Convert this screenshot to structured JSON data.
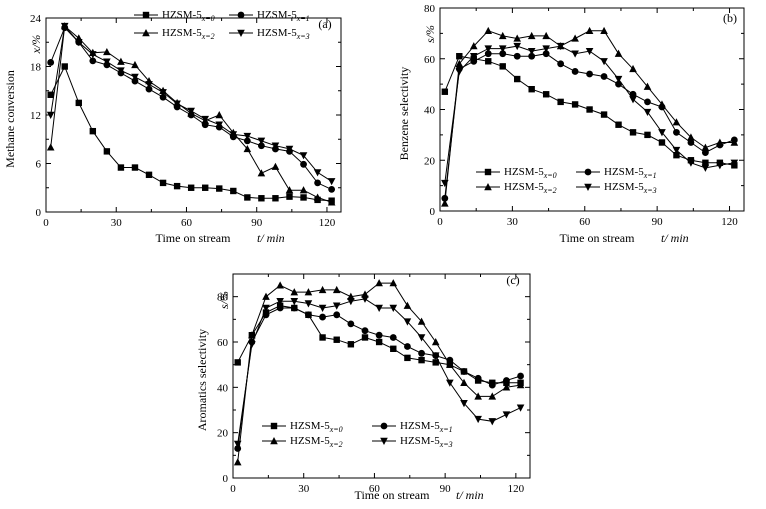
{
  "chart_data": [
    {
      "type": "line",
      "panel_label": "(a)",
      "xlabel": "Time on stream",
      "xlabel_var": "t/ min",
      "ylabel": "Methane conversion",
      "ylabel_var": "x/%",
      "xlim": [
        0,
        126
      ],
      "ylim": [
        0,
        24
      ],
      "xticks": [
        0,
        30,
        60,
        90,
        120
      ],
      "yticks": [
        0,
        6,
        12,
        18,
        24
      ],
      "legend_position": "top-center",
      "series": [
        {
          "name": "HZSM-5",
          "sub": "x=0",
          "marker": "square",
          "x": [
            2,
            8,
            14,
            20,
            26,
            32,
            38,
            44,
            50,
            56,
            62,
            68,
            74,
            80,
            86,
            92,
            98,
            104,
            110,
            116,
            122
          ],
          "y": [
            14.5,
            18,
            13.5,
            10,
            7.5,
            5.5,
            5.5,
            4.6,
            3.6,
            3.2,
            3.0,
            3.0,
            2.9,
            2.6,
            1.8,
            1.7,
            1.7,
            1.9,
            1.8,
            1.5,
            1.4
          ]
        },
        {
          "name": "HZSM-5",
          "sub": "x=1",
          "marker": "circle",
          "x": [
            2,
            8,
            14,
            20,
            26,
            32,
            38,
            44,
            50,
            56,
            62,
            68,
            74,
            80,
            86,
            92,
            98,
            104,
            110,
            116,
            122
          ],
          "y": [
            18.5,
            22.8,
            21.0,
            18.7,
            18.2,
            17.2,
            16.2,
            15.2,
            14.2,
            13.0,
            12.0,
            10.8,
            10.5,
            9.3,
            8.8,
            8.2,
            7.8,
            7.5,
            5.9,
            3.6,
            2.8
          ]
        },
        {
          "name": "HZSM-5",
          "sub": "x=2",
          "marker": "triangle-up",
          "x": [
            2,
            8,
            14,
            20,
            26,
            32,
            38,
            44,
            50,
            56,
            62,
            68,
            74,
            80,
            86,
            92,
            98,
            104,
            110,
            116,
            122
          ],
          "y": [
            8.0,
            23.0,
            21.5,
            19.7,
            19.8,
            18.6,
            18.2,
            16.2,
            15.0,
            13.5,
            12.2,
            11.3,
            12.0,
            9.8,
            7.8,
            4.8,
            5.6,
            2.7,
            2.7,
            1.8,
            1.2
          ]
        },
        {
          "name": "HZSM-5",
          "sub": "x=3",
          "marker": "triangle-down",
          "x": [
            2,
            8,
            14,
            20,
            26,
            32,
            38,
            44,
            50,
            56,
            62,
            68,
            74,
            80,
            86,
            92,
            98,
            104,
            110,
            116,
            122
          ],
          "y": [
            12.0,
            23.0,
            21.0,
            19.5,
            18.6,
            17.5,
            16.7,
            15.8,
            14.8,
            13.4,
            12.5,
            11.5,
            10.8,
            9.6,
            9.4,
            8.8,
            8.2,
            7.8,
            7.0,
            4.9,
            3.8
          ]
        }
      ]
    },
    {
      "type": "line",
      "panel_label": "(b)",
      "xlabel": "Time on stream",
      "xlabel_var": "t/ min",
      "ylabel": "Benzene selectivity",
      "ylabel_var": "s/%",
      "xlim": [
        0,
        126
      ],
      "ylim": [
        0,
        80
      ],
      "xticks": [
        0,
        30,
        60,
        90,
        120
      ],
      "yticks": [
        0,
        20,
        40,
        60,
        80
      ],
      "legend_position": "bottom-left",
      "series": [
        {
          "name": "HZSM-5",
          "sub": "x=0",
          "marker": "square",
          "x": [
            2,
            8,
            14,
            20,
            26,
            32,
            38,
            44,
            50,
            56,
            62,
            68,
            74,
            80,
            86,
            92,
            98,
            104,
            110,
            116,
            122
          ],
          "y": [
            47,
            61,
            60,
            59,
            57,
            52,
            48,
            46,
            43,
            42,
            40,
            38,
            34,
            31,
            30,
            27,
            22,
            20,
            19,
            19,
            18
          ]
        },
        {
          "name": "HZSM-5",
          "sub": "x=1",
          "marker": "circle",
          "x": [
            2,
            8,
            14,
            20,
            26,
            32,
            38,
            44,
            50,
            56,
            62,
            68,
            74,
            80,
            86,
            92,
            98,
            104,
            110,
            116,
            122
          ],
          "y": [
            5,
            56,
            59,
            62,
            62,
            61,
            61,
            62,
            58,
            55,
            54,
            53,
            50,
            46,
            43,
            41,
            31,
            27,
            23,
            26,
            28
          ]
        },
        {
          "name": "HZSM-5",
          "sub": "x=2",
          "marker": "triangle-up",
          "x": [
            2,
            8,
            14,
            20,
            26,
            32,
            38,
            44,
            50,
            56,
            62,
            68,
            74,
            80,
            86,
            92,
            98,
            104,
            110,
            116,
            122
          ],
          "y": [
            3,
            58,
            65,
            71,
            69,
            68,
            69,
            69,
            65,
            68,
            71,
            71,
            62,
            56,
            49,
            42,
            35,
            29,
            25,
            27,
            27
          ]
        },
        {
          "name": "HZSM-5",
          "sub": "x=3",
          "marker": "triangle-down",
          "x": [
            2,
            8,
            14,
            20,
            26,
            32,
            38,
            44,
            50,
            56,
            62,
            68,
            74,
            80,
            86,
            92,
            98,
            104,
            110,
            116,
            122
          ],
          "y": [
            11,
            55,
            61,
            64,
            64,
            65,
            63,
            64,
            65,
            62,
            63,
            59,
            52,
            44,
            39,
            31,
            24,
            19,
            17,
            18,
            19
          ]
        }
      ]
    },
    {
      "type": "line",
      "panel_label": "(c)",
      "xlabel": "Time on stream",
      "xlabel_var": "t/ min",
      "ylabel": "Aromatics selectivity",
      "ylabel_var": "s/%",
      "xlim": [
        0,
        126
      ],
      "ylim": [
        0,
        90
      ],
      "xticks": [
        0,
        30,
        60,
        90,
        120
      ],
      "yticks": [
        0,
        20,
        40,
        60,
        80
      ],
      "legend_position": "bottom-left",
      "series": [
        {
          "name": "HZSM-5",
          "sub": "x=0",
          "marker": "square",
          "x": [
            2,
            8,
            14,
            20,
            26,
            32,
            38,
            44,
            50,
            56,
            62,
            68,
            74,
            80,
            86,
            92,
            98,
            104,
            110,
            116,
            122
          ],
          "y": [
            51,
            63,
            73,
            76,
            75,
            72,
            62,
            61,
            59,
            62,
            60,
            57,
            53,
            52,
            51,
            50,
            47,
            43,
            42,
            42,
            42
          ]
        },
        {
          "name": "HZSM-5",
          "sub": "x=1",
          "marker": "circle",
          "x": [
            2,
            8,
            14,
            20,
            26,
            32,
            38,
            44,
            50,
            56,
            62,
            68,
            74,
            80,
            86,
            92,
            98,
            104,
            110,
            116,
            122
          ],
          "y": [
            13,
            60,
            72,
            75,
            75,
            72,
            71,
            72,
            68,
            65,
            63,
            62,
            58,
            55,
            54,
            52,
            47,
            44,
            41,
            43,
            45
          ]
        },
        {
          "name": "HZSM-5",
          "sub": "x=2",
          "marker": "triangle-up",
          "x": [
            2,
            8,
            14,
            20,
            26,
            32,
            38,
            44,
            50,
            56,
            62,
            68,
            74,
            80,
            86,
            92,
            98,
            104,
            110,
            116,
            122
          ],
          "y": [
            7,
            63,
            80,
            85,
            82,
            82,
            83,
            83,
            80,
            81,
            86,
            86,
            76,
            69,
            60,
            50,
            42,
            36,
            36,
            40,
            41
          ]
        },
        {
          "name": "HZSM-5",
          "sub": "x=3",
          "marker": "triangle-down",
          "x": [
            2,
            8,
            14,
            20,
            26,
            32,
            38,
            44,
            50,
            56,
            62,
            68,
            74,
            80,
            86,
            92,
            98,
            104,
            110,
            116,
            122
          ],
          "y": [
            15,
            59,
            75,
            78,
            78,
            77,
            75,
            76,
            78,
            79,
            75,
            75,
            69,
            62,
            54,
            42,
            33,
            26,
            25,
            28,
            31
          ]
        }
      ]
    }
  ]
}
